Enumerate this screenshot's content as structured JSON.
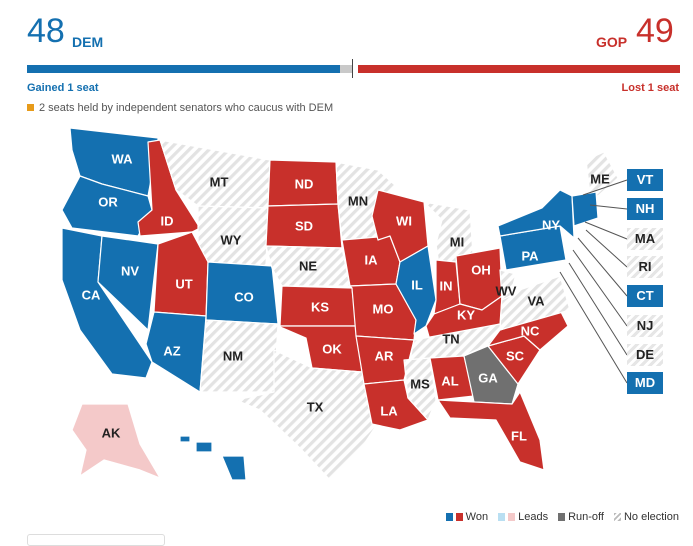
{
  "header": {
    "dem_count": "48",
    "dem_label": "DEM",
    "gop_label": "GOP",
    "gop_count": "49",
    "dem_change": "Gained 1 seat",
    "gop_change": "Lost 1 seat",
    "independent_note": "2 seats held by independent senators who caucus with DEM"
  },
  "colors": {
    "dem": "#1470b0",
    "gop": "#c8302b",
    "dem_leads": "#b9dff2",
    "gop_leads": "#f4c9c9",
    "runoff": "#707070",
    "independent": "#e79b1a"
  },
  "map": {
    "states": [
      {
        "code": "WA",
        "status": "dem"
      },
      {
        "code": "OR",
        "status": "dem"
      },
      {
        "code": "CA",
        "status": "dem"
      },
      {
        "code": "NV",
        "status": "dem"
      },
      {
        "code": "ID",
        "status": "gop"
      },
      {
        "code": "MT",
        "status": "none"
      },
      {
        "code": "WY",
        "status": "none"
      },
      {
        "code": "UT",
        "status": "gop"
      },
      {
        "code": "AZ",
        "status": "dem"
      },
      {
        "code": "CO",
        "status": "dem"
      },
      {
        "code": "NM",
        "status": "none"
      },
      {
        "code": "ND",
        "status": "gop"
      },
      {
        "code": "SD",
        "status": "gop"
      },
      {
        "code": "NE",
        "status": "none"
      },
      {
        "code": "KS",
        "status": "gop"
      },
      {
        "code": "OK",
        "status": "gop"
      },
      {
        "code": "TX",
        "status": "none"
      },
      {
        "code": "MN",
        "status": "none"
      },
      {
        "code": "IA",
        "status": "gop"
      },
      {
        "code": "MO",
        "status": "gop"
      },
      {
        "code": "AR",
        "status": "gop"
      },
      {
        "code": "LA",
        "status": "gop"
      },
      {
        "code": "WI",
        "status": "gop"
      },
      {
        "code": "IL",
        "status": "dem"
      },
      {
        "code": "MI",
        "status": "none"
      },
      {
        "code": "IN",
        "status": "gop"
      },
      {
        "code": "OH",
        "status": "gop"
      },
      {
        "code": "KY",
        "status": "gop"
      },
      {
        "code": "TN",
        "status": "none"
      },
      {
        "code": "MS",
        "status": "none"
      },
      {
        "code": "AL",
        "status": "gop"
      },
      {
        "code": "GA",
        "status": "runoff"
      },
      {
        "code": "FL",
        "status": "gop"
      },
      {
        "code": "SC",
        "status": "gop"
      },
      {
        "code": "NC",
        "status": "gop"
      },
      {
        "code": "VA",
        "status": "none"
      },
      {
        "code": "WV",
        "status": "none"
      },
      {
        "code": "PA",
        "status": "dem"
      },
      {
        "code": "NY",
        "status": "dem"
      },
      {
        "code": "ME",
        "status": "none"
      },
      {
        "code": "AK",
        "status": "gop_leads"
      },
      {
        "code": "HI",
        "status": "dem"
      }
    ],
    "side_states": [
      {
        "code": "VT",
        "status": "dem"
      },
      {
        "code": "NH",
        "status": "dem"
      },
      {
        "code": "MA",
        "status": "none"
      },
      {
        "code": "RI",
        "status": "none"
      },
      {
        "code": "CT",
        "status": "dem"
      },
      {
        "code": "NJ",
        "status": "none"
      },
      {
        "code": "DE",
        "status": "none"
      },
      {
        "code": "MD",
        "status": "dem"
      }
    ]
  },
  "legend": {
    "won": "Won",
    "leads": "Leads",
    "runoff": "Run-off",
    "no_election": "No election"
  }
}
